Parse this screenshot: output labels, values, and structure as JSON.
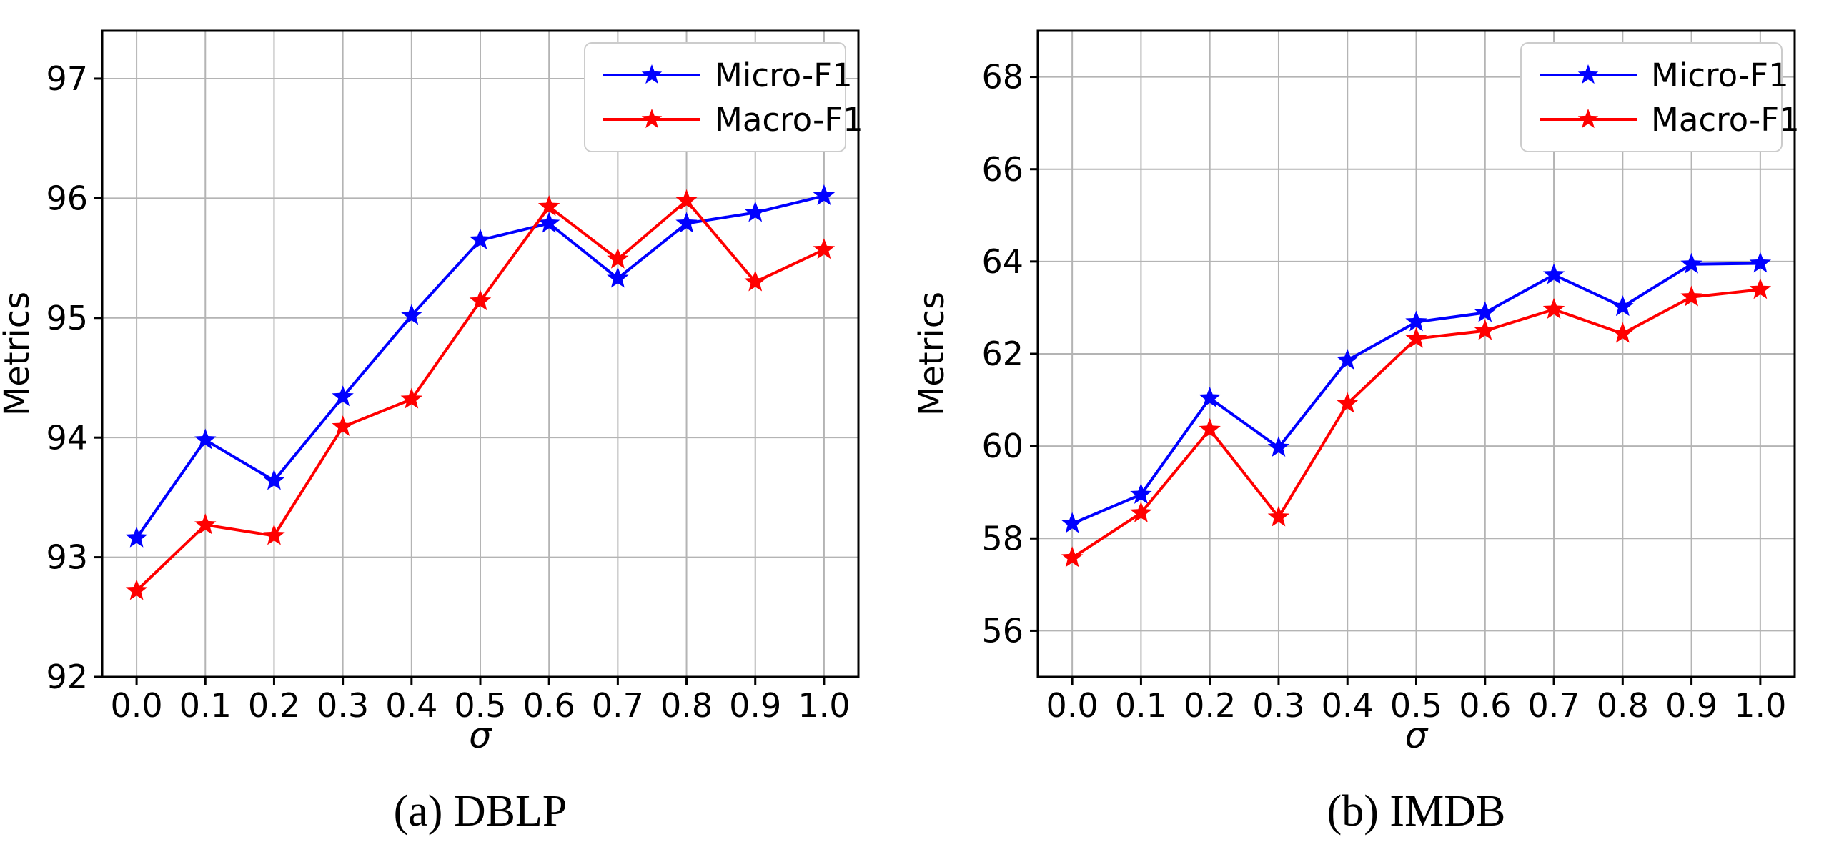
{
  "figure": {
    "background": "#ffffff",
    "panel_count": 2
  },
  "style": {
    "grid_color": "#b4b4b4",
    "spine_color": "#000000",
    "legend_border_color": "#cccccc",
    "legend_background": "#ffffff",
    "text_color": "#000000",
    "micro_color": "#0000ff",
    "macro_color": "#ff0000"
  },
  "chart_data": [
    {
      "id": "dblp",
      "type": "line",
      "caption": "(a) DBLP",
      "xlabel": "σ",
      "ylabel": "Metrics",
      "grid": true,
      "legend_position": "top-right",
      "x": [
        0.0,
        0.1,
        0.2,
        0.3,
        0.4,
        0.5,
        0.6,
        0.7,
        0.8,
        0.9,
        1.0
      ],
      "x_tick_labels": [
        "0.0",
        "0.1",
        "0.2",
        "0.3",
        "0.4",
        "0.5",
        "0.6",
        "0.7",
        "0.8",
        "0.9",
        "1.0"
      ],
      "xlim": [
        -0.05,
        1.05
      ],
      "ylim": [
        92,
        97.4
      ],
      "y_ticks": [
        92,
        93,
        94,
        95,
        96,
        97
      ],
      "series": [
        {
          "name": "Micro-F1",
          "color": "#0000ff",
          "marker": "star",
          "values": [
            93.16,
            93.98,
            93.64,
            94.34,
            95.02,
            95.65,
            95.79,
            95.33,
            95.79,
            95.88,
            96.02
          ]
        },
        {
          "name": "Macro-F1",
          "color": "#ff0000",
          "marker": "star",
          "values": [
            92.72,
            93.27,
            93.18,
            94.09,
            94.32,
            95.14,
            95.93,
            95.49,
            95.98,
            95.3,
            95.57
          ]
        }
      ]
    },
    {
      "id": "imdb",
      "type": "line",
      "caption": "(b) IMDB",
      "xlabel": "σ",
      "ylabel": "Metrics",
      "grid": true,
      "legend_position": "top-right",
      "x": [
        0.0,
        0.1,
        0.2,
        0.3,
        0.4,
        0.5,
        0.6,
        0.7,
        0.8,
        0.9,
        1.0
      ],
      "x_tick_labels": [
        "0.0",
        "0.1",
        "0.2",
        "0.3",
        "0.4",
        "0.5",
        "0.6",
        "0.7",
        "0.8",
        "0.9",
        "1.0"
      ],
      "xlim": [
        -0.05,
        1.05
      ],
      "ylim": [
        55,
        69
      ],
      "y_ticks": [
        56,
        58,
        60,
        62,
        64,
        66,
        68
      ],
      "series": [
        {
          "name": "Micro-F1",
          "color": "#0000ff",
          "marker": "star",
          "values": [
            58.32,
            58.95,
            61.04,
            59.97,
            61.86,
            62.69,
            62.89,
            63.71,
            63.02,
            63.94,
            63.96
          ]
        },
        {
          "name": "Macro-F1",
          "color": "#ff0000",
          "marker": "star",
          "values": [
            57.58,
            58.55,
            60.36,
            58.46,
            60.92,
            62.33,
            62.5,
            62.96,
            62.44,
            63.23,
            63.39
          ]
        }
      ]
    }
  ]
}
